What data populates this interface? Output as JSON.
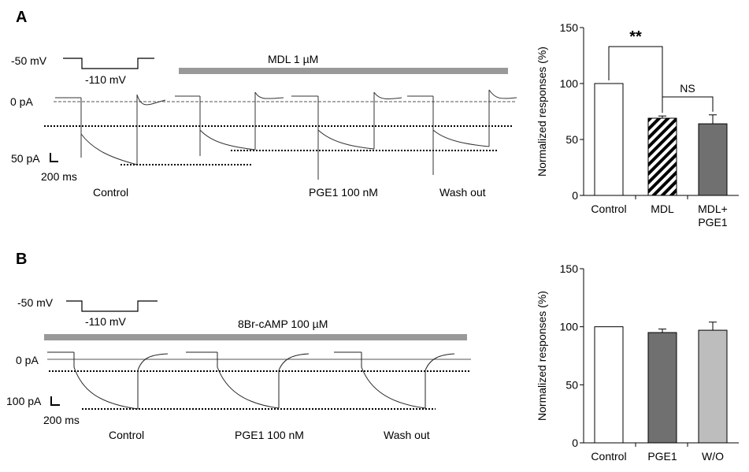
{
  "panels": [
    {
      "label": "A",
      "traces": {
        "cmd_hold": "-50 mV",
        "cmd_step": "-110 mV",
        "drug_bar": "MDL 1 µM",
        "zero_label": "0 pA",
        "scale_current": "50 pA",
        "scale_time": "200 ms",
        "conditions": [
          "Control",
          "PGE1 100 nM",
          "Wash out"
        ]
      }
    },
    {
      "label": "B",
      "traces": {
        "cmd_hold": "-50 mV",
        "cmd_step": "-110 mV",
        "drug_bar": "8Br-cAMP 100 µM",
        "zero_label": "0 pA",
        "scale_current": "100 pA",
        "scale_time": "200 ms",
        "conditions": [
          "Control",
          "PGE1 100 nM",
          "Wash out"
        ]
      }
    }
  ],
  "colors": {
    "bar_white": "#ffffff",
    "bar_dark": "#707070",
    "bar_light": "#bdbdbd",
    "drug_bar": "#999999",
    "trace": "#333333"
  },
  "chart_data": [
    {
      "type": "bar",
      "panel": "A",
      "ylabel": "Normalized responses (%)",
      "ylim": [
        0,
        150
      ],
      "yticks": [
        "0",
        "50",
        "100",
        "150"
      ],
      "categories": [
        "Control",
        "MDL",
        "MDL+ PGE1"
      ],
      "category_lines": [
        [
          "Control"
        ],
        [
          "MDL"
        ],
        [
          "MDL+",
          "PGE1"
        ]
      ],
      "values": [
        100,
        69,
        64
      ],
      "errors": [
        0,
        2,
        8
      ],
      "fills": [
        "white",
        "hatch",
        "dark"
      ],
      "annotations": [
        {
          "text": "**",
          "between": [
            0,
            1
          ]
        },
        {
          "text": "NS",
          "between": [
            1,
            2
          ]
        }
      ]
    },
    {
      "type": "bar",
      "panel": "B",
      "ylabel": "Normalized responses (%)",
      "ylim": [
        0,
        150
      ],
      "yticks": [
        "0",
        "50",
        "100",
        "150"
      ],
      "categories": [
        "Control",
        "PGE1",
        "W/O"
      ],
      "category_lines": [
        [
          "Control"
        ],
        [
          "PGE1"
        ],
        [
          "W/O"
        ]
      ],
      "values": [
        100,
        95,
        97
      ],
      "errors": [
        0,
        3,
        7
      ],
      "fills": [
        "white",
        "dark",
        "light"
      ],
      "annotations": []
    }
  ]
}
